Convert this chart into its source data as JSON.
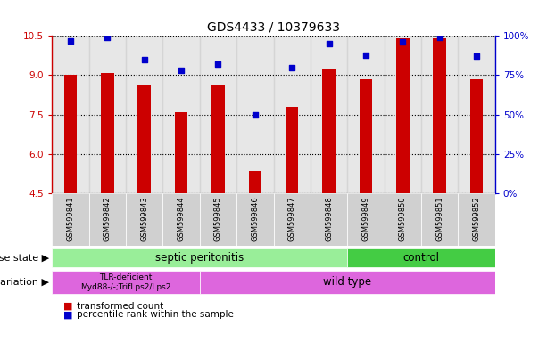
{
  "title": "GDS4433 / 10379633",
  "samples": [
    "GSM599841",
    "GSM599842",
    "GSM599843",
    "GSM599844",
    "GSM599845",
    "GSM599846",
    "GSM599847",
    "GSM599848",
    "GSM599849",
    "GSM599850",
    "GSM599851",
    "GSM599852"
  ],
  "bar_values": [
    9.0,
    9.1,
    8.65,
    7.6,
    8.65,
    5.35,
    7.8,
    9.25,
    8.85,
    10.4,
    10.4,
    8.85
  ],
  "dot_values": [
    97,
    99,
    85,
    78,
    82,
    50,
    80,
    95,
    88,
    96,
    99,
    87
  ],
  "ylim_left": [
    4.5,
    10.5
  ],
  "ylim_right": [
    0,
    100
  ],
  "yticks_left": [
    4.5,
    6.0,
    7.5,
    9.0,
    10.5
  ],
  "yticks_right": [
    0,
    25,
    50,
    75,
    100
  ],
  "ytick_labels_right": [
    "0%",
    "25%",
    "50%",
    "75%",
    "100%"
  ],
  "bar_color": "#cc0000",
  "dot_color": "#0000cc",
  "bar_width": 0.35,
  "disease_state_labels": [
    "septic peritonitis",
    "control"
  ],
  "disease_state_color_1": "#99ee99",
  "disease_state_color_2": "#44cc44",
  "genotype_color": "#dd66dd",
  "legend_red_label": "transformed count",
  "legend_blue_label": "percentile rank within the sample",
  "title_fontsize": 10,
  "tick_fontsize": 7.5,
  "annotation_fontsize": 8.5,
  "xtick_fontsize": 6
}
